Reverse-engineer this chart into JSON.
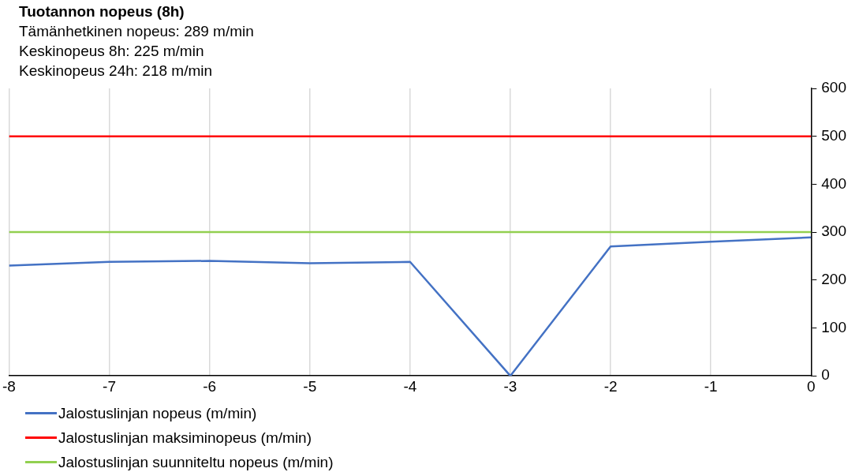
{
  "chart_data": {
    "type": "line",
    "title": "Tuotannon nopeus (8h)",
    "annotations": [
      "Tämänhetkinen nopeus: 289 m/min",
      "Keskinopeus 8h: 225 m/min",
      "Keskinopeus 24h: 218 m/min"
    ],
    "x": [
      -8,
      -7,
      -6,
      -5,
      -4,
      -3,
      -2,
      -1,
      0
    ],
    "series": [
      {
        "name": "Jalostuslinjan nopeus (m/min)",
        "color": "#4472c4",
        "values": [
          230,
          238,
          240,
          235,
          238,
          0,
          270,
          280,
          289
        ]
      },
      {
        "name": "Jalostuslinjan maksiminopeus (m/min)",
        "color": "#ff0000",
        "values": [
          500,
          500,
          500,
          500,
          500,
          500,
          500,
          500,
          500
        ]
      },
      {
        "name": "Jalostuslinjan suunniteltu nopeus (m/min)",
        "color": "#92d050",
        "values": [
          300,
          300,
          300,
          300,
          300,
          300,
          300,
          300,
          300
        ]
      }
    ],
    "xlim": [
      -8,
      0
    ],
    "xticks": [
      -8,
      -7,
      -6,
      -5,
      -4,
      -3,
      -2,
      -1,
      0
    ],
    "ylim": [
      0,
      600
    ],
    "yticks": [
      0,
      100,
      200,
      300,
      400,
      500,
      600
    ],
    "grid": "x",
    "legend": "bottom",
    "marker": "none",
    "line_style": "solid"
  }
}
